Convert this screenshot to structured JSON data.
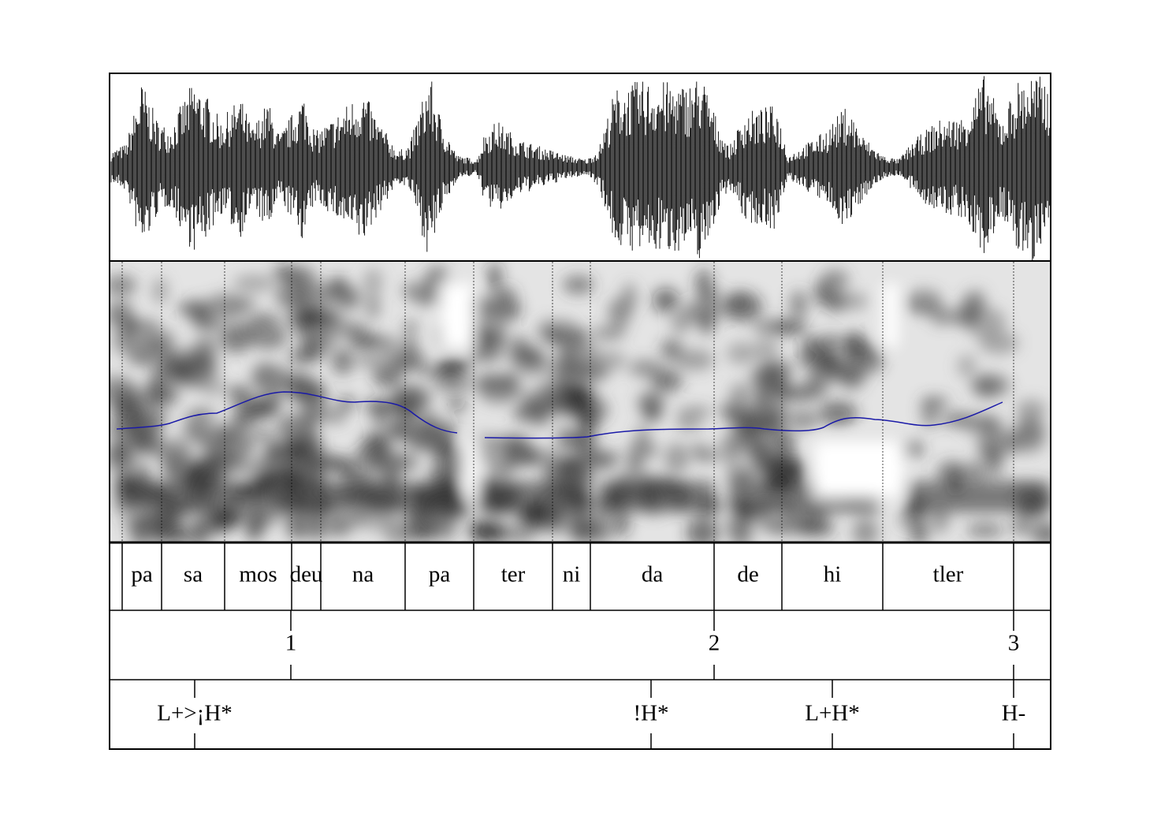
{
  "syllables": [
    "pa",
    "sa",
    "mos",
    "deu",
    "na",
    "pa",
    "ter",
    "ni",
    "da",
    "de",
    "hi",
    "tler"
  ],
  "breaks": [
    "1",
    "2",
    "3"
  ],
  "tones": [
    "L+>¡H*",
    "!H*",
    "L+H*",
    "H-"
  ]
}
